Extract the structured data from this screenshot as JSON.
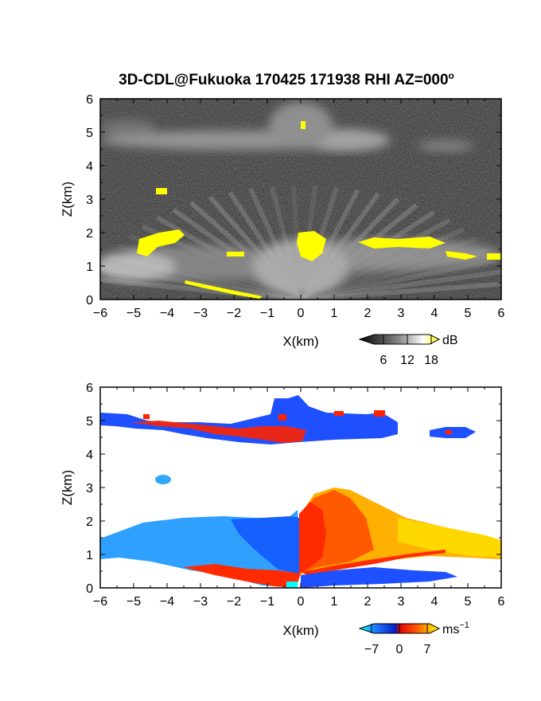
{
  "title": "3D-CDL@Fukuoka 170425 171938 RHI AZ=000",
  "title_superscript": "o",
  "chart_data": [
    {
      "type": "heatmap",
      "panel": "top",
      "quantity": "signal intensity",
      "xlabel": "X(km)",
      "ylabel": "Z(km)",
      "xlim": [
        -6,
        6
      ],
      "ylim": [
        0,
        6
      ],
      "x_ticks": [
        "−6",
        "−5",
        "−4",
        "−3",
        "−2",
        "−1",
        "0",
        "1",
        "2",
        "3",
        "4",
        "5",
        "6"
      ],
      "y_ticks": [
        "0",
        "1",
        "2",
        "3",
        "4",
        "5",
        "6"
      ],
      "colorbar": {
        "unit": "dB",
        "ticks": [
          "6",
          "12",
          "18"
        ],
        "tick_values": [
          6,
          12,
          18
        ],
        "range": [
          0,
          20
        ],
        "colors": [
          "#000000",
          "#ffffff",
          "#ffff00"
        ]
      },
      "features": [
        {
          "feature": "cloud layer",
          "x": [
            -6,
            5.3
          ],
          "z": [
            4.3,
            5.8
          ]
        },
        {
          "feature": "isolated echo",
          "x": [
            -4.3,
            -3.9
          ],
          "z": [
            3.1,
            3.3
          ]
        },
        {
          "feature": "lower layer",
          "x": [
            -6,
            6
          ],
          "z": [
            0,
            2.2
          ]
        }
      ]
    },
    {
      "type": "heatmap",
      "panel": "bottom",
      "quantity": "radial velocity",
      "xlabel": "X(km)",
      "ylabel": "Z(km)",
      "xlim": [
        -6,
        6
      ],
      "ylim": [
        0,
        6
      ],
      "x_ticks": [
        "−6",
        "−5",
        "−4",
        "−3",
        "−2",
        "−1",
        "0",
        "1",
        "2",
        "3",
        "4",
        "5",
        "6"
      ],
      "y_ticks": [
        "0",
        "1",
        "2",
        "3",
        "4",
        "5",
        "6"
      ],
      "colorbar": {
        "unit": "ms",
        "unit_superscript": "−1",
        "ticks": [
          "−7",
          "0",
          "7"
        ],
        "tick_values": [
          -7,
          0,
          7
        ],
        "range": [
          -10,
          10
        ],
        "colors": [
          "#00ffff",
          "#0040ff",
          "#ff2000",
          "#ff8000",
          "#ffff00"
        ]
      },
      "features": [
        {
          "feature": "upper layer, mixed",
          "x": [
            -6,
            3.1
          ],
          "z": [
            4.3,
            5.8
          ],
          "velocity": "mixed ±7"
        },
        {
          "feature": "isolated echo",
          "x": [
            4.0,
            5.3
          ],
          "z": [
            4.5,
            4.8
          ],
          "velocity": -7
        },
        {
          "feature": "isolated echo",
          "x": [
            -4.3,
            -3.9
          ],
          "z": [
            3.1,
            3.3
          ],
          "velocity": -5
        },
        {
          "feature": "lower layer, west (toward)",
          "x": [
            -6,
            0
          ],
          "z": [
            0,
            2.2
          ],
          "velocity": -5
        },
        {
          "feature": "lower layer, east (away)",
          "x": [
            0,
            6
          ],
          "z": [
            0,
            3.0
          ],
          "velocity": 5
        }
      ]
    }
  ]
}
